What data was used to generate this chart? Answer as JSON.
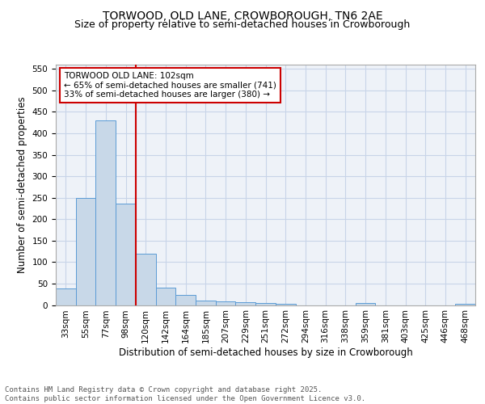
{
  "title": "TORWOOD, OLD LANE, CROWBOROUGH, TN6 2AE",
  "subtitle": "Size of property relative to semi-detached houses in Crowborough",
  "xlabel": "Distribution of semi-detached houses by size in Crowborough",
  "ylabel": "Number of semi-detached properties",
  "categories": [
    "33sqm",
    "55sqm",
    "77sqm",
    "98sqm",
    "120sqm",
    "142sqm",
    "164sqm",
    "185sqm",
    "207sqm",
    "229sqm",
    "251sqm",
    "272sqm",
    "294sqm",
    "316sqm",
    "338sqm",
    "359sqm",
    "381sqm",
    "403sqm",
    "425sqm",
    "446sqm",
    "468sqm"
  ],
  "values": [
    38,
    250,
    430,
    237,
    119,
    40,
    24,
    10,
    9,
    7,
    5,
    2,
    0,
    0,
    0,
    4,
    0,
    0,
    0,
    0,
    3
  ],
  "bar_color": "#c8d8e8",
  "bar_edge_color": "#5b9bd5",
  "grid_color": "#c8d4e8",
  "background_color": "#eef2f8",
  "vline_color": "#cc0000",
  "annotation_text": "TORWOOD OLD LANE: 102sqm\n← 65% of semi-detached houses are smaller (741)\n33% of semi-detached houses are larger (380) →",
  "annotation_box_color": "#cc0000",
  "ylim": [
    0,
    560
  ],
  "yticks": [
    0,
    50,
    100,
    150,
    200,
    250,
    300,
    350,
    400,
    450,
    500,
    550
  ],
  "footer": "Contains HM Land Registry data © Crown copyright and database right 2025.\nContains public sector information licensed under the Open Government Licence v3.0.",
  "title_fontsize": 10,
  "subtitle_fontsize": 9,
  "xlabel_fontsize": 8.5,
  "ylabel_fontsize": 8.5,
  "tick_fontsize": 7.5,
  "footer_fontsize": 6.5
}
